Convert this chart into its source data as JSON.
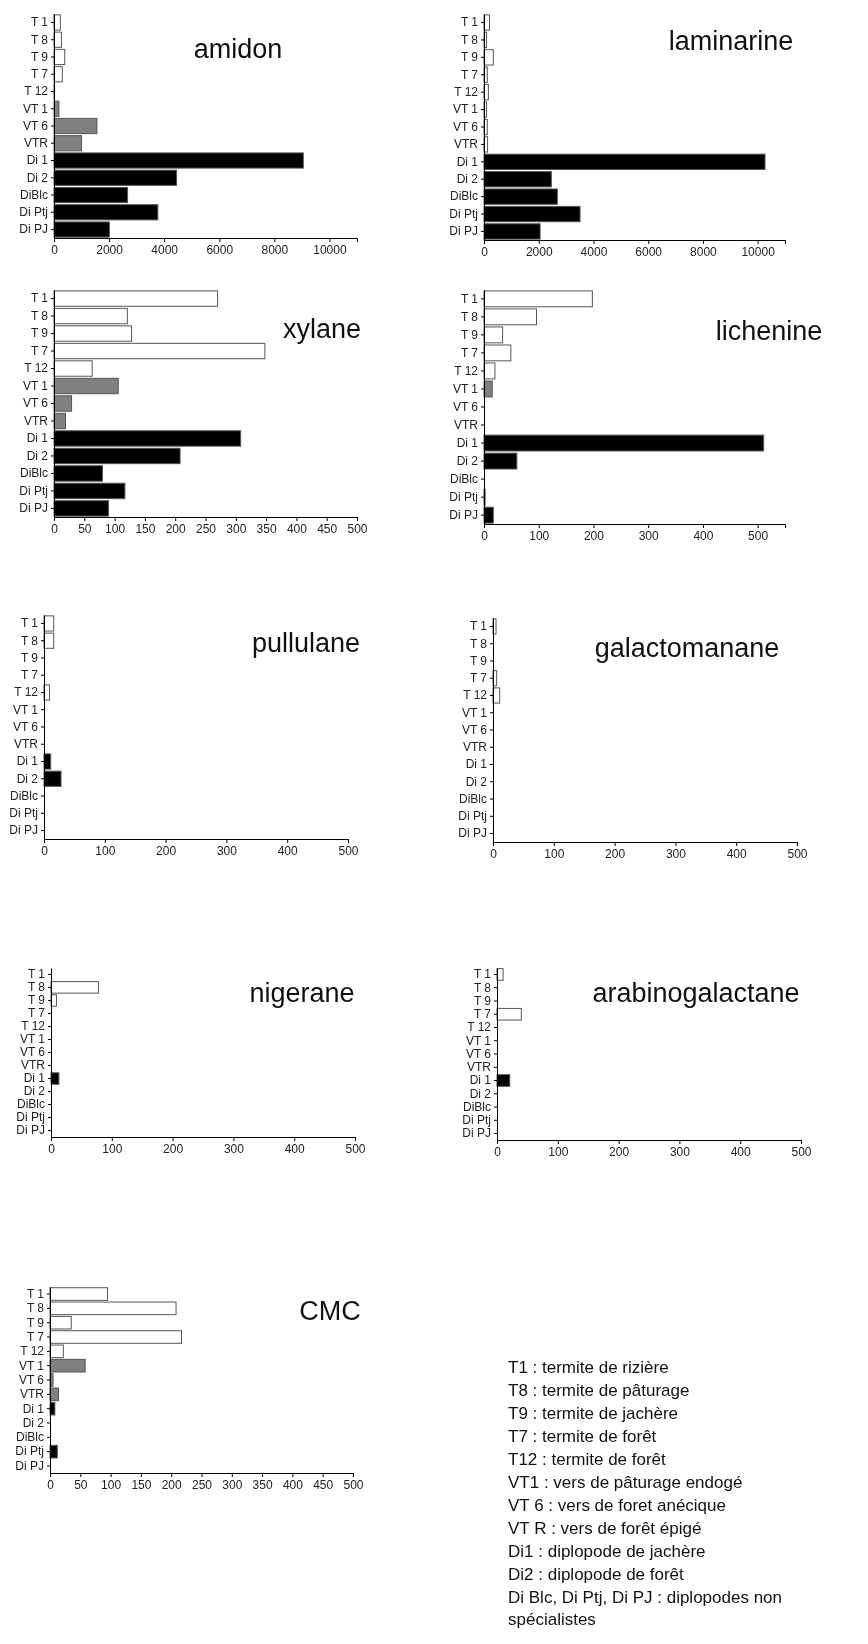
{
  "chart_data": [
    {
      "type": "bar",
      "orientation": "horizontal",
      "title": "amidon",
      "categories": [
        "T 1",
        "T 8",
        "T 9",
        "T 7",
        "T 12",
        "VT 1",
        "VT 6",
        "VTR",
        "Di 1",
        "Di 2",
        "DiBlc",
        "Di Ptj",
        "Di PJ"
      ],
      "values": [
        230,
        270,
        390,
        300,
        20,
        180,
        1560,
        1000,
        9050,
        4450,
        2670,
        3770,
        2010
      ],
      "colors": [
        "#ffffff",
        "#ffffff",
        "#ffffff",
        "#ffffff",
        "#ffffff",
        "#808080",
        "#808080",
        "#808080",
        "#000000",
        "#000000",
        "#000000",
        "#000000",
        "#000000"
      ],
      "xlim": [
        0,
        11000
      ],
      "xticks": [
        0,
        2000,
        4000,
        6000,
        8000,
        10000
      ]
    },
    {
      "type": "bar",
      "orientation": "horizontal",
      "title": "laminarine",
      "categories": [
        "T 1",
        "T 8",
        "T 9",
        "T 7",
        "T 12",
        "VT 1",
        "VT 6",
        "VTR",
        "Di 1",
        "Di 2",
        "DiBlc",
        "Di Ptj",
        "Di PJ"
      ],
      "values": [
        200,
        90,
        340,
        120,
        160,
        90,
        120,
        130,
        10270,
        2460,
        2680,
        3510,
        2050
      ],
      "colors": [
        "#ffffff",
        "#ffffff",
        "#ffffff",
        "#ffffff",
        "#ffffff",
        "#ffffff",
        "#ffffff",
        "#ffffff",
        "#000000",
        "#000000",
        "#000000",
        "#000000",
        "#000000"
      ],
      "xlim": [
        0,
        11000
      ],
      "xticks": [
        0,
        2000,
        4000,
        6000,
        8000,
        10000
      ]
    },
    {
      "type": "bar",
      "orientation": "horizontal",
      "title": "xylane",
      "categories": [
        "T 1",
        "T 8",
        "T 9",
        "T 7",
        "T 12",
        "VT 1",
        "VT 6",
        "VTR",
        "Di 1",
        "Di 2",
        "DiBlc",
        "Di Ptj",
        "Di PJ"
      ],
      "values": [
        270,
        121,
        128,
        348,
        63,
        106,
        29,
        19,
        308,
        208,
        80,
        117,
        90
      ],
      "colors": [
        "#ffffff",
        "#ffffff",
        "#ffffff",
        "#ffffff",
        "#ffffff",
        "#808080",
        "#808080",
        "#808080",
        "#000000",
        "#000000",
        "#000000",
        "#000000",
        "#000000"
      ],
      "xlim": [
        0,
        500
      ],
      "xticks": [
        0,
        50,
        100,
        150,
        200,
        250,
        300,
        350,
        400,
        450,
        500
      ]
    },
    {
      "type": "bar",
      "orientation": "horizontal",
      "title": "lichenine",
      "categories": [
        "T 1",
        "T 8",
        "T 9",
        "T 7",
        "T 12",
        "VT 1",
        "VT 6",
        "VTR",
        "Di 1",
        "Di 2",
        "DiBlc",
        "Di Ptj",
        "Di PJ"
      ],
      "values": [
        198,
        96,
        34,
        49,
        20,
        15,
        0,
        0,
        511,
        60,
        0,
        2,
        17
      ],
      "colors": [
        "#ffffff",
        "#ffffff",
        "#ffffff",
        "#ffffff",
        "#ffffff",
        "#808080",
        "#808080",
        "#808080",
        "#000000",
        "#000000",
        "#000000",
        "#000000",
        "#000000"
      ],
      "xlim": [
        0,
        550
      ],
      "xticks": [
        0,
        100,
        200,
        300,
        400,
        500
      ]
    },
    {
      "type": "bar",
      "orientation": "horizontal",
      "title": "pullulane",
      "categories": [
        "T 1",
        "T 8",
        "T 9",
        "T 7",
        "T 12",
        "VT 1",
        "VT 6",
        "VTR",
        "Di 1",
        "Di 2",
        "DiBlc",
        "Di Ptj",
        "Di PJ"
      ],
      "values": [
        16,
        16,
        0,
        0,
        9,
        0,
        0,
        0,
        11,
        28,
        0,
        0,
        0
      ],
      "colors": [
        "#ffffff",
        "#ffffff",
        "#ffffff",
        "#ffffff",
        "#ffffff",
        "#808080",
        "#808080",
        "#808080",
        "#000000",
        "#000000",
        "#000000",
        "#000000",
        "#000000"
      ],
      "xlim": [
        0,
        500
      ],
      "xticks": [
        0,
        100,
        200,
        300,
        400,
        500
      ]
    },
    {
      "type": "bar",
      "orientation": "horizontal",
      "title": "galactomanane",
      "categories": [
        "T 1",
        "T 8",
        "T 9",
        "T 7",
        "T 12",
        "VT 1",
        "VT 6",
        "VTR",
        "Di 1",
        "Di 2",
        "DiBlc",
        "Di Ptj",
        "Di PJ"
      ],
      "values": [
        5,
        0,
        0,
        6,
        11,
        0,
        0,
        0,
        0,
        0,
        0,
        0,
        0
      ],
      "colors": [
        "#ffffff",
        "#ffffff",
        "#ffffff",
        "#ffffff",
        "#ffffff",
        "#808080",
        "#808080",
        "#808080",
        "#000000",
        "#000000",
        "#000000",
        "#000000",
        "#000000"
      ],
      "xlim": [
        0,
        500
      ],
      "xticks": [
        0,
        100,
        200,
        300,
        400,
        500
      ]
    },
    {
      "type": "bar",
      "orientation": "horizontal",
      "title": "nigerane",
      "categories": [
        "T 1",
        "T 8",
        "T 9",
        "T 7",
        "T 12",
        "VT 1",
        "VT 6",
        "VTR",
        "Di 1",
        "Di 2",
        "DiBlc",
        "Di Ptj",
        "Di PJ"
      ],
      "values": [
        0,
        78,
        9,
        0,
        0,
        0,
        0,
        0,
        13,
        0,
        0,
        0,
        0
      ],
      "colors": [
        "#ffffff",
        "#ffffff",
        "#ffffff",
        "#ffffff",
        "#ffffff",
        "#808080",
        "#808080",
        "#808080",
        "#000000",
        "#000000",
        "#000000",
        "#000000",
        "#000000"
      ],
      "xlim": [
        0,
        500
      ],
      "xticks": [
        0,
        100,
        200,
        300,
        400,
        500
      ]
    },
    {
      "type": "bar",
      "orientation": "horizontal",
      "title": "arabinogalactane",
      "categories": [
        "T 1",
        "T 8",
        "T 9",
        "T 7",
        "T 12",
        "VT 1",
        "VT 6",
        "VTR",
        "Di 1",
        "Di 2",
        "DiBlc",
        "Di Ptj",
        "Di PJ"
      ],
      "values": [
        10,
        0,
        0,
        40,
        0,
        0,
        0,
        0,
        21,
        0,
        0,
        0,
        0
      ],
      "colors": [
        "#ffffff",
        "#ffffff",
        "#ffffff",
        "#ffffff",
        "#ffffff",
        "#808080",
        "#808080",
        "#808080",
        "#000000",
        "#000000",
        "#000000",
        "#000000",
        "#000000"
      ],
      "xlim": [
        0,
        500
      ],
      "xticks": [
        0,
        100,
        200,
        300,
        400,
        500
      ]
    },
    {
      "type": "bar",
      "orientation": "horizontal",
      "title": "CMC",
      "categories": [
        "T 1",
        "T 8",
        "T 9",
        "T 7",
        "T 12",
        "VT 1",
        "VT 6",
        "VTR",
        "Di 1",
        "Di 2",
        "DiBlc",
        "Di Ptj",
        "Di PJ"
      ],
      "values": [
        95,
        208,
        35,
        217,
        22,
        58,
        5,
        14,
        8,
        0,
        0,
        12,
        0
      ],
      "colors": [
        "#ffffff",
        "#ffffff",
        "#ffffff",
        "#ffffff",
        "#ffffff",
        "#808080",
        "#808080",
        "#808080",
        "#000000",
        "#000000",
        "#000000",
        "#000000",
        "#000000"
      ],
      "xlim": [
        0,
        500
      ],
      "xticks": [
        0,
        50,
        100,
        150,
        200,
        250,
        300,
        350,
        400,
        450,
        500
      ]
    },
    {
      "type": "other",
      "annotations": [
        "T1 : termite de rizière",
        "T8 : termite de pâturage",
        "T9 : termite de jachère",
        "T7 : termite de forêt",
        "T12 : termite de forêt",
        "VT1 : vers de pâturage endogé",
        "VT 6 : vers de foret anécique",
        "VT R : vers de forêt épigé",
        "Di1 : diplopode de jachère",
        "Di2 : diplopode de forêt",
        "Di Blc, Di Ptj, Di PJ : diplopodes non spécialistes"
      ]
    }
  ]
}
